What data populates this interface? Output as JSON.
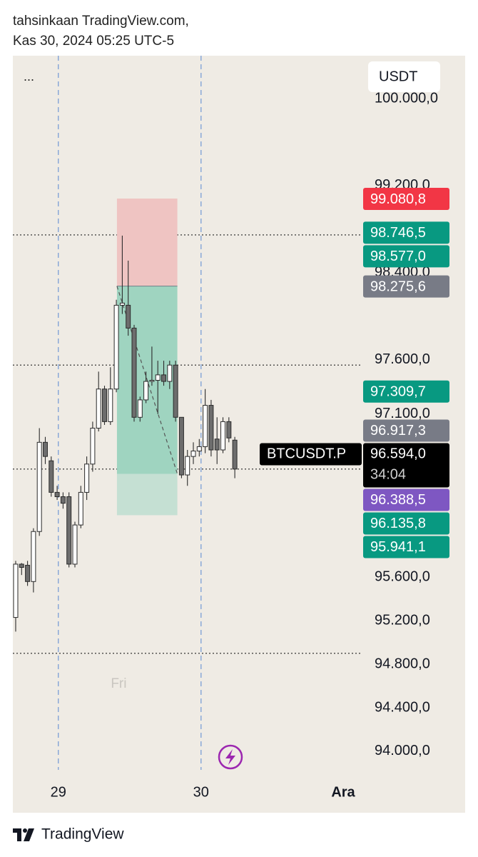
{
  "header": {
    "line1": "tahsinkaan TradingView.com,",
    "line2": "Kas 30, 2024 05:25 UTC-5"
  },
  "footer": {
    "brand": "TradingView"
  },
  "chart_data": {
    "type": "candlestick",
    "menu": "...",
    "currency": "USDT",
    "session_label": "Fri",
    "up_color": "#ffffff",
    "down_color": "#6d6d6d",
    "border_color": "#2b2b2b",
    "open": [
      95230,
      95720,
      95710,
      95560,
      96020,
      96840,
      96670,
      96380,
      96340,
      96340,
      95720,
      96080,
      96380,
      96640,
      96970,
      97330,
      97030,
      97330,
      98100,
      98100,
      97890,
      97070,
      97230,
      97400,
      97410,
      97460,
      97400,
      97550,
      97070,
      96540,
      96710,
      96760,
      96800,
      97180,
      96870,
      96770,
      97030,
      96860
    ],
    "high": [
      95750,
      95730,
      95750,
      96050,
      96970,
      96890,
      96710,
      96440,
      96380,
      96380,
      96110,
      96440,
      96710,
      97030,
      97490,
      97360,
      97530,
      98150,
      98740,
      98510,
      97920,
      97260,
      97490,
      97720,
      97590,
      97590,
      97590,
      97590,
      97070,
      96770,
      96840,
      96870,
      97330,
      97230,
      97070,
      97070,
      97070,
      96890
    ],
    "low": [
      95100,
      95620,
      95520,
      95460,
      95980,
      96640,
      96340,
      96310,
      96230,
      95690,
      95690,
      96050,
      96310,
      96570,
      96940,
      97000,
      97000,
      97300,
      98020,
      97820,
      97030,
      97030,
      97200,
      97360,
      97100,
      97360,
      97330,
      97030,
      96510,
      96440,
      96640,
      96710,
      96740,
      96710,
      96640,
      96740,
      96840,
      96510
    ],
    "close": [
      95720,
      95690,
      95560,
      96020,
      96840,
      96710,
      96380,
      96340,
      96280,
      95720,
      96080,
      96380,
      96640,
      96970,
      97330,
      97030,
      97330,
      98100,
      98120,
      97890,
      97070,
      97230,
      97400,
      97410,
      97460,
      97400,
      97550,
      97070,
      96540,
      96710,
      96760,
      96800,
      97180,
      96770,
      96770,
      97030,
      96880,
      96594
    ],
    "xlim": [
      -0.48,
      58.55
    ],
    "xticks": [
      {
        "value": 7.2,
        "label": "29"
      },
      {
        "value": 31.3,
        "label": "30"
      },
      {
        "value": 55.3,
        "label": "Ara"
      }
    ],
    "session_breaks": [
      7.2,
      31.3
    ],
    "session_label_x": 17.4,
    "ylim": [
      93750,
      100394
    ],
    "yticks": [
      {
        "value": 100000,
        "label": "100.000,0"
      },
      {
        "value": 99200,
        "label": "99.200,0"
      },
      {
        "value": 98400,
        "label": "98.400,0"
      },
      {
        "value": 97600,
        "label": "97.600,0"
      },
      {
        "value": 97100,
        "label": "97.100,0"
      },
      {
        "value": 95600,
        "label": "95.600,0"
      },
      {
        "value": 95200,
        "label": "95.200,0"
      },
      {
        "value": 94800,
        "label": "94.800,0"
      },
      {
        "value": 94400,
        "label": "94.400,0"
      },
      {
        "value": 94000,
        "label": "94.000,0"
      }
    ],
    "hlines": [
      98746.5,
      97550,
      96594,
      94900
    ],
    "position": {
      "x_start": 17.1,
      "x_end": 27.3,
      "stop": 99080.8,
      "entry": 98275.6,
      "target": 96550,
      "extended": 96170,
      "stop_color": "#efc4c2",
      "target_color": "#9fd4c0",
      "extended_color": "#c5e0d3"
    },
    "current": {
      "symbol": "BTCUSDT.P",
      "price": 96594,
      "price_label": "96.594,0",
      "countdown": "34:04",
      "color": "#000000"
    },
    "badges": [
      {
        "value": 99080.8,
        "label": "99.080,8",
        "color": "#f23645"
      },
      {
        "value": 98746.5,
        "label": "98.746,5",
        "color": "#089981"
      },
      {
        "value": 98577,
        "label": "98.577,0",
        "color": "#089981"
      },
      {
        "value": 98275.6,
        "label": "98.275,6",
        "color": "#787b86"
      },
      {
        "value": 97309.7,
        "label": "97.309,7",
        "color": "#089981"
      },
      {
        "value": 96917.3,
        "label": "96.917,3",
        "color": "#787b86"
      },
      {
        "value": 96388.5,
        "label": "96.388,5",
        "color": "#7e57c2"
      },
      {
        "value": 96135.8,
        "label": "96.135,8",
        "color": "#089981"
      },
      {
        "value": 95941.1,
        "label": "95.941,1",
        "color": "#089981"
      }
    ]
  }
}
